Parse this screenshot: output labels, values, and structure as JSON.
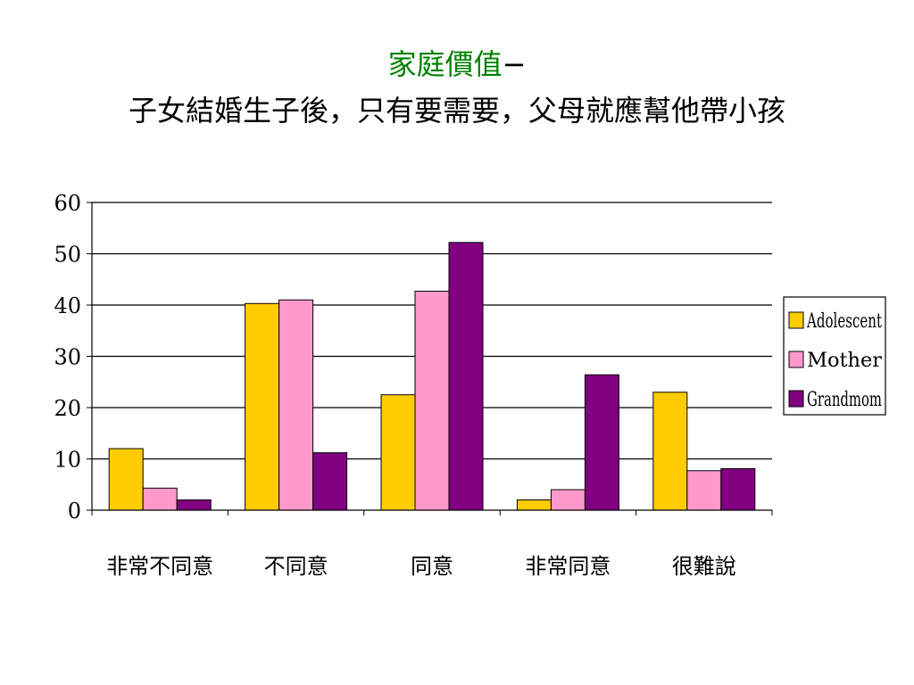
{
  "slide": {
    "title_highlight": "家庭價值",
    "title_dash": "−",
    "title_highlight_color": "#008000",
    "subtitle": "子女結婚生子後，只有要需要，父母就應幫他帶小孩"
  },
  "chart_data": {
    "type": "bar",
    "categories": [
      "非常不同意",
      "不同意",
      "同意",
      "非常同意",
      "很難說"
    ],
    "series": [
      {
        "name": "Adolescent",
        "color": "#FFCC00",
        "values": [
          12,
          40.3,
          22.5,
          2,
          23
        ]
      },
      {
        "name": "Mother",
        "color": "#FF99CC",
        "values": [
          4.3,
          41,
          42.7,
          4,
          7.7
        ]
      },
      {
        "name": "Grandmom",
        "color": "#800080",
        "values": [
          2,
          11.2,
          52.2,
          26.4,
          8.1
        ]
      }
    ],
    "ylim": [
      0,
      60
    ],
    "yticks": [
      0,
      10,
      20,
      30,
      40,
      50,
      60
    ],
    "grid": true,
    "legend": "right",
    "title": "",
    "xlabel": "",
    "ylabel": ""
  }
}
